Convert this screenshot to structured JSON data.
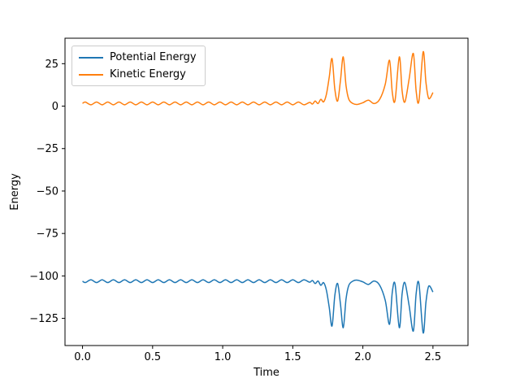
{
  "chart_data": {
    "type": "line",
    "title": "",
    "xlabel": "Time",
    "ylabel": "Energy",
    "xlim": [
      -0.125,
      2.75
    ],
    "ylim": [
      -141,
      40
    ],
    "xticks": [
      0.0,
      0.5,
      1.0,
      1.5,
      2.0,
      2.5
    ],
    "xtick_labels": [
      "0.0",
      "0.5",
      "1.0",
      "1.5",
      "2.0",
      "2.5"
    ],
    "yticks": [
      25,
      0,
      -25,
      -50,
      -75,
      -100,
      -125
    ],
    "ytick_labels": [
      "25",
      "0",
      "−25",
      "−50",
      "−75",
      "−100",
      "−125"
    ],
    "grid": false,
    "legend_position": "upper left",
    "x": [
      0.0,
      0.02,
      0.06,
      0.1,
      0.14,
      0.18,
      0.22,
      0.26,
      0.3,
      0.34,
      0.38,
      0.42,
      0.46,
      0.5,
      0.54,
      0.58,
      0.62,
      0.66,
      0.7,
      0.74,
      0.78,
      0.82,
      0.86,
      0.9,
      0.94,
      0.98,
      1.02,
      1.06,
      1.1,
      1.14,
      1.18,
      1.22,
      1.26,
      1.3,
      1.34,
      1.38,
      1.42,
      1.46,
      1.5,
      1.54,
      1.58,
      1.62,
      1.64,
      1.66,
      1.68,
      1.7,
      1.72,
      1.74,
      1.76,
      1.78,
      1.8,
      1.82,
      1.84,
      1.86,
      1.88,
      1.9,
      1.93,
      1.96,
      2.0,
      2.04,
      2.08,
      2.12,
      2.16,
      2.19,
      2.21,
      2.23,
      2.26,
      2.28,
      2.3,
      2.33,
      2.36,
      2.38,
      2.4,
      2.43,
      2.45,
      2.47,
      2.5
    ],
    "series": [
      {
        "name": "Potential Energy",
        "color": "#1f77b4",
        "values": [
          -103.1,
          -103.9,
          -102.3,
          -103.9,
          -102.3,
          -103.9,
          -102.3,
          -103.9,
          -102.3,
          -103.9,
          -102.3,
          -103.9,
          -102.3,
          -103.9,
          -102.3,
          -103.9,
          -102.3,
          -103.9,
          -102.3,
          -103.9,
          -102.3,
          -103.9,
          -102.3,
          -103.9,
          -102.3,
          -103.9,
          -102.3,
          -103.9,
          -102.3,
          -103.9,
          -102.3,
          -103.9,
          -102.3,
          -103.9,
          -102.3,
          -103.9,
          -102.3,
          -103.9,
          -102.3,
          -103.9,
          -102.3,
          -103.7,
          -102.7,
          -104.5,
          -103.0,
          -105.5,
          -104.0,
          -108.5,
          -118.5,
          -129.5,
          -111.5,
          -104.5,
          -116.5,
          -130.5,
          -113.5,
          -105.5,
          -103.0,
          -102.5,
          -103.5,
          -105.0,
          -103.0,
          -105.5,
          -114.5,
          -128.5,
          -109.5,
          -105.0,
          -130.5,
          -110.5,
          -104.0,
          -117.5,
          -132.5,
          -110.5,
          -104.5,
          -133.5,
          -115.5,
          -106.0,
          -109.5
        ]
      },
      {
        "name": "Kinetic Energy",
        "color": "#ff7f0e",
        "values": [
          1.6,
          2.4,
          0.8,
          2.4,
          0.8,
          2.4,
          0.8,
          2.4,
          0.8,
          2.4,
          0.8,
          2.4,
          0.8,
          2.4,
          0.8,
          2.4,
          0.8,
          2.4,
          0.8,
          2.4,
          0.8,
          2.4,
          0.8,
          2.4,
          0.8,
          2.4,
          0.8,
          2.4,
          0.8,
          2.4,
          0.8,
          2.4,
          0.8,
          2.4,
          0.8,
          2.4,
          0.8,
          2.4,
          0.8,
          2.4,
          0.8,
          2.2,
          1.2,
          3.0,
          1.5,
          4.0,
          2.5,
          7.0,
          17,
          28,
          10,
          3.0,
          15,
          29,
          12,
          4.0,
          1.5,
          1.0,
          2.0,
          3.5,
          1.5,
          4.0,
          13,
          27,
          8,
          3.5,
          29,
          9,
          2.5,
          16,
          31,
          9,
          3.0,
          32,
          14,
          4.5,
          8.0
        ]
      }
    ]
  },
  "colors": {
    "background": "#ffffff",
    "spine": "#000000"
  }
}
